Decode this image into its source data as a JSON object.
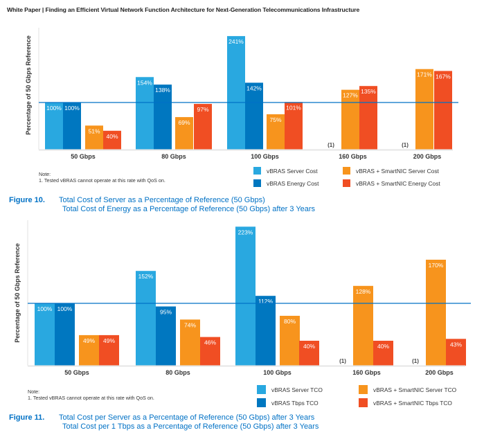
{
  "header": {
    "title": "White Paper | Finding an Efficient Virtual Network Function Architecture for Next-Generation Telecommunications Infrastructure"
  },
  "colors": {
    "vbras_server": "#29a8e0",
    "vbras_energy": "#0077c0",
    "smartnic_server": "#f7941d",
    "smartnic_energy": "#f04e23",
    "reference_line": "#0071c5",
    "caption": "#0071c5"
  },
  "chart_data": [
    {
      "type": "bar",
      "title": "Figure 10. Total Cost of Server / Energy as a Percentage of Reference (50 Gbps)",
      "ylabel": "Percentage of 50 Gbps Reference",
      "xlabel": "",
      "categories": [
        "50 Gbps",
        "80 Gbps",
        "100 Gbps",
        "160 Gbps",
        "200 Gbps"
      ],
      "reference_line": 100,
      "ylim": [
        0,
        245
      ],
      "grid": false,
      "legend_position": "bottom-right",
      "na_label": "(1)",
      "series": [
        {
          "name": "vBRAS Server Cost",
          "color": "#29a8e0",
          "values": [
            100,
            154,
            241,
            null,
            null
          ],
          "labels": [
            "100%",
            "154%",
            "241%",
            null,
            null
          ]
        },
        {
          "name": "vBRAS Energy Cost",
          "color": "#0077c0",
          "values": [
            100,
            138,
            142,
            null,
            null
          ],
          "labels": [
            "100%",
            "138%",
            "142%",
            null,
            null
          ]
        },
        {
          "name": "vBRAS + SmartNIC Server Cost",
          "color": "#f7941d",
          "values": [
            51,
            69,
            75,
            127,
            171
          ],
          "labels": [
            "51%",
            "69%",
            "75%",
            "127%",
            "171%"
          ]
        },
        {
          "name": "vBRAS + SmartNIC Energy Cost",
          "color": "#f04e23",
          "values": [
            40,
            97,
            101,
            135,
            167
          ],
          "labels": [
            "40%",
            "97%",
            "101%",
            "135%",
            "167%"
          ]
        }
      ]
    },
    {
      "type": "bar",
      "title": "Figure 11. Total Cost per Server / per 1 Tbps as a Percentage of Reference (50 Gbps) after 3 Years",
      "ylabel": "Percentage of 50 Gbps Reference",
      "xlabel": "",
      "categories": [
        "50 Gbps",
        "80 Gbps",
        "100 Gbps",
        "160 Gbps",
        "200 Gbps"
      ],
      "reference_line": 100,
      "ylim": [
        0,
        228
      ],
      "grid": false,
      "legend_position": "bottom-right",
      "na_label": "(1)",
      "series": [
        {
          "name": "vBRAS Server TCO",
          "color": "#29a8e0",
          "values": [
            100,
            152,
            223,
            null,
            null
          ],
          "labels": [
            "100%",
            "152%",
            "223%",
            null,
            null
          ]
        },
        {
          "name": "vBRAS Tbps TCO",
          "color": "#0077c0",
          "values": [
            100,
            95,
            112,
            null,
            null
          ],
          "labels": [
            "100%",
            "95%",
            "112%",
            null,
            null
          ]
        },
        {
          "name": "vBRAS + SmartNIC Server TCO",
          "color": "#f7941d",
          "values": [
            49,
            74,
            80,
            128,
            170
          ],
          "labels": [
            "49%",
            "74%",
            "80%",
            "128%",
            "170%"
          ]
        },
        {
          "name": "vBRAS + SmartNIC Tbps TCO",
          "color": "#f04e23",
          "values": [
            49,
            46,
            40,
            40,
            43
          ],
          "labels": [
            "49%",
            "46%",
            "40%",
            "40%",
            "43%"
          ]
        }
      ]
    }
  ],
  "fig10": {
    "note_title": "Note:",
    "note_text": "1. Tested vBRAS cannot operate at this rate with QoS on.",
    "legend": [
      "vBRAS Server Cost",
      "vBRAS Energy Cost",
      "vBRAS + SmartNIC Server Cost",
      "vBRAS + SmartNIC Energy Cost"
    ],
    "caption_label": "Figure 10.",
    "caption_line1": "Total Cost of Server as a Percentage of  Reference (50 Gbps)",
    "caption_line2": "Total Cost of Energy as a Percentage of Reference (50 Gbps) after 3 Years"
  },
  "fig11": {
    "note_title": "Note:",
    "note_text": "1. Tested vBRAS cannot operate at this rate with QoS on.",
    "legend": [
      "vBRAS Server TCO",
      "vBRAS Tbps TCO",
      "vBRAS + SmartNIC Server TCO",
      "vBRAS + SmartNIC Tbps TCO"
    ],
    "caption_label": "Figure 11.",
    "caption_line1": "Total Cost per Server as a Percentage of  Reference (50 Gbps) after 3 Years",
    "caption_line2": "Total Cost per 1 Tbps as a Percentage of Reference (50 Gbps) after 3 Years"
  }
}
